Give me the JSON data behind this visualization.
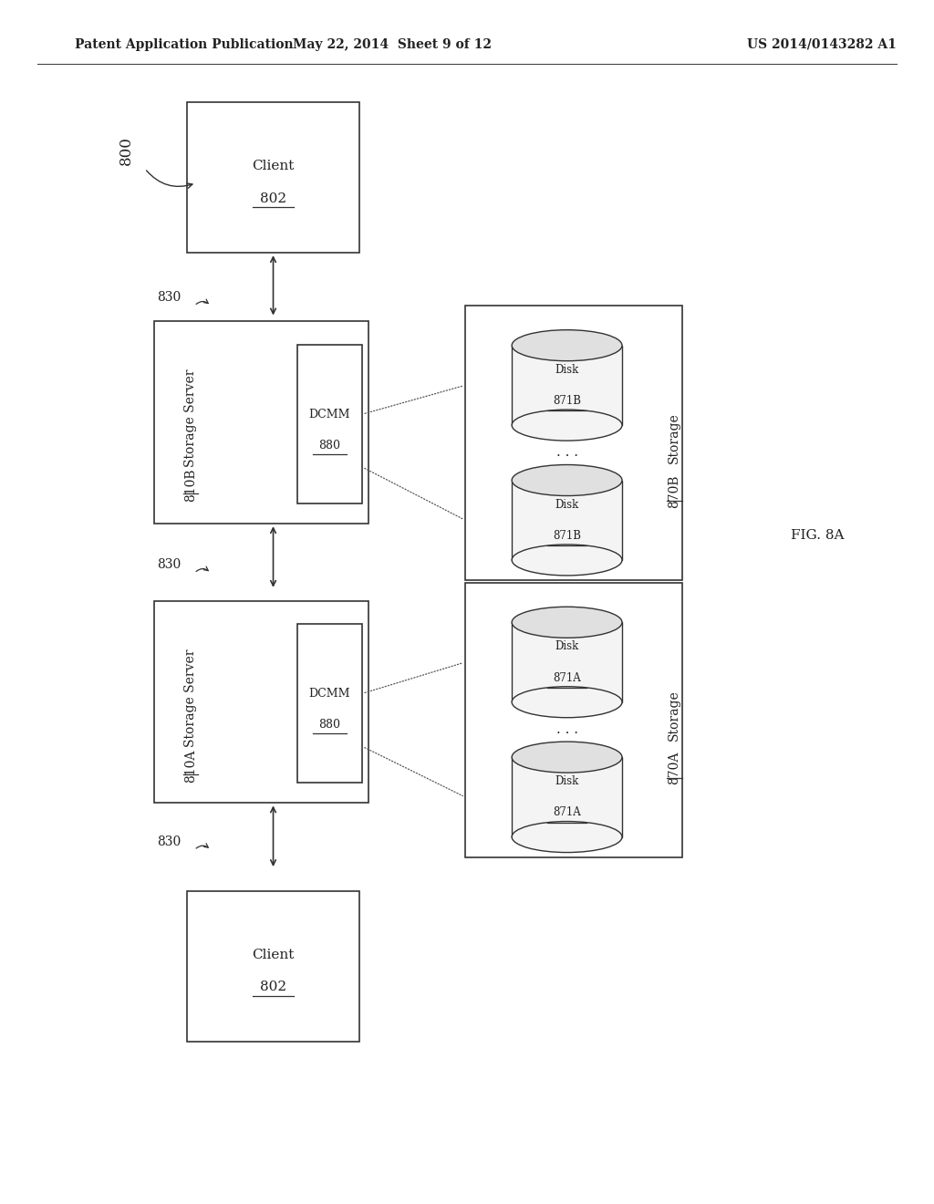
{
  "bg_color": "#ffffff",
  "header_left": "Patent Application Publication",
  "header_center": "May 22, 2014  Sheet 9 of 12",
  "header_right": "US 2014/0143282 A1",
  "fig_label": "FIG. 8A",
  "diagram_label": "800",
  "text_color": "#222222",
  "line_color": "#333333",
  "dot_color": "#555555"
}
